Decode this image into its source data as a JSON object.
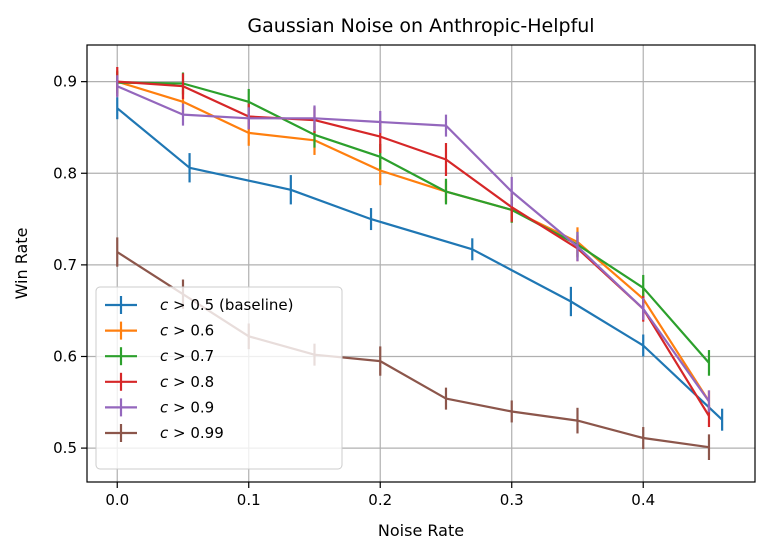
{
  "chart_data": {
    "type": "line",
    "title": "Gaussian Noise on Anthropic-Helpful",
    "xlabel": "Noise Rate",
    "ylabel": "Win Rate",
    "xlim": [
      -0.023,
      0.485
    ],
    "ylim": [
      0.463,
      0.94
    ],
    "xticks": [
      0.0,
      0.1,
      0.2,
      0.3,
      0.4
    ],
    "xtick_labels": [
      "0.0",
      "0.1",
      "0.2",
      "0.3",
      "0.4"
    ],
    "yticks": [
      0.5,
      0.6,
      0.7,
      0.8,
      0.9
    ],
    "ytick_labels": [
      "0.5",
      "0.6",
      "0.7",
      "0.8",
      "0.9"
    ],
    "grid": true,
    "legend_position": "lower-left",
    "series": [
      {
        "name": "c > 0.5 (baseline)",
        "color": "#1f77b4",
        "x": [
          0.0,
          0.055,
          0.132,
          0.193,
          0.27,
          0.345,
          0.4,
          0.46
        ],
        "y": [
          0.871,
          0.806,
          0.782,
          0.75,
          0.717,
          0.66,
          0.612,
          0.531
        ],
        "err": [
          0.012,
          0.016,
          0.016,
          0.012,
          0.012,
          0.016,
          0.012,
          0.012
        ]
      },
      {
        "name": "c > 0.6",
        "color": "#ff7f0e",
        "x": [
          0.0,
          0.05,
          0.1,
          0.15,
          0.2,
          0.25,
          0.3,
          0.35,
          0.4,
          0.45
        ],
        "y": [
          0.9,
          0.878,
          0.844,
          0.836,
          0.803,
          0.78,
          0.76,
          0.725,
          0.663,
          0.551
        ],
        "err": [
          0.012,
          0.014,
          0.014,
          0.016,
          0.016,
          0.012,
          0.014,
          0.016,
          0.012,
          0.012
        ]
      },
      {
        "name": "c > 0.7",
        "color": "#2ca02c",
        "x": [
          0.0,
          0.05,
          0.1,
          0.15,
          0.2,
          0.25,
          0.3,
          0.35,
          0.4,
          0.45
        ],
        "y": [
          0.899,
          0.898,
          0.878,
          0.842,
          0.818,
          0.78,
          0.76,
          0.722,
          0.675,
          0.593
        ],
        "err": [
          0.012,
          0.012,
          0.014,
          0.014,
          0.014,
          0.014,
          0.014,
          0.014,
          0.014,
          0.014
        ]
      },
      {
        "name": "c > 0.8",
        "color": "#d62728",
        "x": [
          0.0,
          0.05,
          0.1,
          0.15,
          0.2,
          0.25,
          0.3,
          0.35,
          0.4,
          0.45
        ],
        "y": [
          0.9,
          0.895,
          0.862,
          0.858,
          0.84,
          0.815,
          0.763,
          0.718,
          0.652,
          0.535
        ],
        "err": [
          0.016,
          0.014,
          0.014,
          0.014,
          0.018,
          0.018,
          0.016,
          0.014,
          0.014,
          0.012
        ]
      },
      {
        "name": "c > 0.9",
        "color": "#9467bd",
        "x": [
          0.0,
          0.05,
          0.1,
          0.15,
          0.2,
          0.25,
          0.3,
          0.35,
          0.4,
          0.45
        ],
        "y": [
          0.895,
          0.864,
          0.86,
          0.86,
          0.856,
          0.852,
          0.78,
          0.72,
          0.652,
          0.551
        ],
        "err": [
          0.012,
          0.012,
          0.012,
          0.014,
          0.012,
          0.012,
          0.016,
          0.016,
          0.012,
          0.012
        ]
      },
      {
        "name": "c > 0.99",
        "color": "#8c564b",
        "x": [
          0.0,
          0.05,
          0.1,
          0.15,
          0.2,
          0.25,
          0.3,
          0.35,
          0.4,
          0.45
        ],
        "y": [
          0.714,
          0.668,
          0.622,
          0.602,
          0.595,
          0.554,
          0.54,
          0.53,
          0.511,
          0.501
        ],
        "err": [
          0.016,
          0.016,
          0.014,
          0.012,
          0.016,
          0.012,
          0.012,
          0.014,
          0.012,
          0.014
        ]
      }
    ],
    "legend": [
      {
        "prefix": "c",
        "rest": " > 0.5 (baseline)"
      },
      {
        "prefix": "c",
        "rest": " > 0.6"
      },
      {
        "prefix": "c",
        "rest": " > 0.7"
      },
      {
        "prefix": "c",
        "rest": " > 0.8"
      },
      {
        "prefix": "c",
        "rest": " > 0.9"
      },
      {
        "prefix": "c",
        "rest": " > 0.99"
      }
    ]
  }
}
